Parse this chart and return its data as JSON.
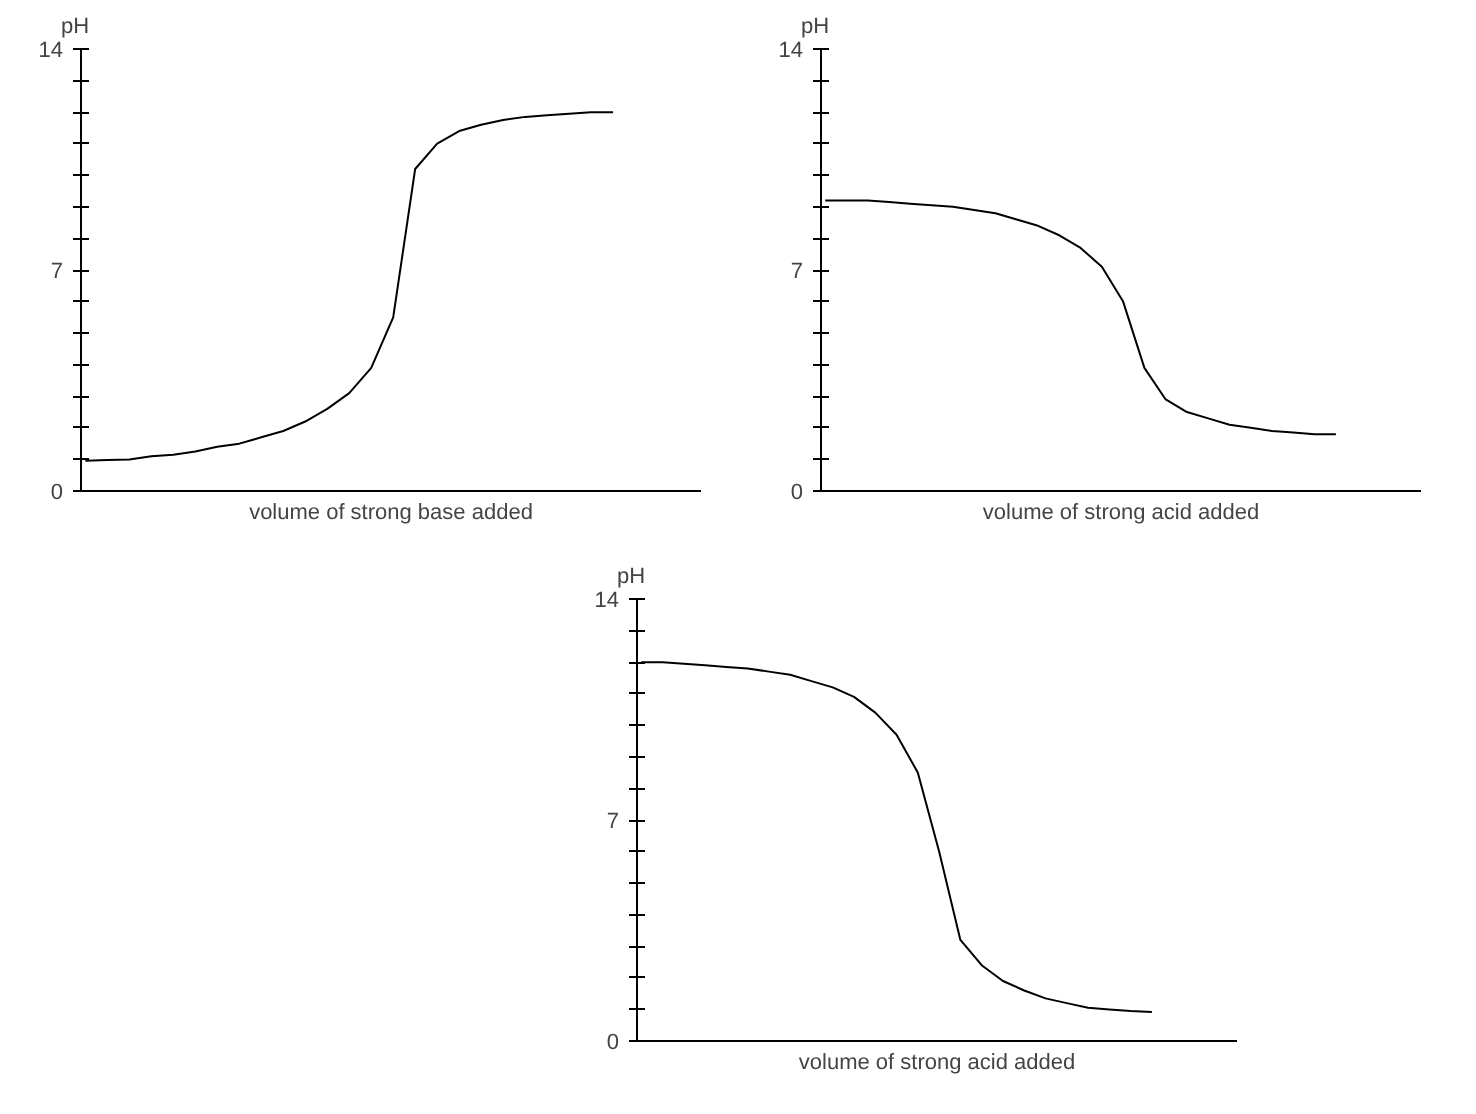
{
  "chart_data": [
    {
      "type": "line",
      "xlabel": "volume of strong base added",
      "ylabel": "pH",
      "tick_labels": "y",
      "color": "#000000",
      "ylim": [
        0,
        14
      ],
      "yticks": [
        0,
        {
          "value": 1,
          "label": null
        },
        {
          "value": 2,
          "label": null
        },
        {
          "value": 3,
          "label": null
        },
        {
          "value": 4,
          "label": null
        },
        {
          "value": 5,
          "label": null
        },
        {
          "value": 6,
          "label": null
        },
        7,
        {
          "value": 8,
          "label": null
        },
        {
          "value": 9,
          "label": null
        },
        {
          "value": 10,
          "label": null
        },
        {
          "value": 11,
          "label": null
        },
        {
          "value": 12,
          "label": null
        },
        {
          "value": 13,
          "label": null
        },
        14
      ],
      "categories": [
        null,
        null,
        null,
        null,
        null,
        null,
        null,
        null,
        null,
        null,
        null,
        null,
        null,
        null,
        null,
        null,
        null,
        null,
        null,
        null,
        null,
        null,
        null,
        null,
        null
      ],
      "values": [
        0.96,
        0.98,
        1.0,
        1.1,
        1.15,
        1.25,
        1.4,
        1.5,
        1.7,
        1.9,
        2.2,
        2.6,
        3.1,
        3.9,
        5.5,
        10.2,
        11.0,
        11.4,
        11.6,
        11.75,
        11.85,
        11.9,
        11.95,
        12.0,
        12.0
      ]
    },
    {
      "type": "line",
      "xlabel": "volume of strong acid added",
      "ylabel": "pH",
      "tick_labels": "y",
      "color": "#000000",
      "ylim": [
        0,
        14
      ],
      "yticks": [
        0,
        {
          "value": 1,
          "label": null
        },
        {
          "value": 2,
          "label": null
        },
        {
          "value": 3,
          "label": null
        },
        {
          "value": 4,
          "label": null
        },
        {
          "value": 5,
          "label": null
        },
        {
          "value": 6,
          "label": null
        },
        7,
        {
          "value": 8,
          "label": null
        },
        {
          "value": 9,
          "label": null
        },
        {
          "value": 10,
          "label": null
        },
        {
          "value": 11,
          "label": null
        },
        {
          "value": 12,
          "label": null
        },
        {
          "value": 13,
          "label": null
        },
        14
      ],
      "categories": [
        null,
        null,
        null,
        null,
        null,
        null,
        null,
        null,
        null,
        null,
        null,
        null,
        null,
        null,
        null,
        null,
        null,
        null,
        null,
        null,
        null,
        null,
        null,
        null,
        null
      ],
      "values": [
        9.2,
        9.2,
        9.2,
        9.15,
        9.1,
        9.05,
        9.0,
        8.9,
        8.8,
        8.6,
        8.4,
        8.1,
        7.7,
        7.1,
        6.0,
        3.9,
        2.9,
        2.5,
        2.3,
        2.1,
        2.0,
        1.9,
        1.85,
        1.8,
        1.8
      ]
    },
    {
      "type": "line",
      "xlabel": "volume of strong acid added",
      "ylabel": "pH",
      "tick_labels": "y",
      "color": "#000000",
      "ylim": [
        0,
        14
      ],
      "yticks": [
        0,
        {
          "value": 1,
          "label": null
        },
        {
          "value": 2,
          "label": null
        },
        {
          "value": 3,
          "label": null
        },
        {
          "value": 4,
          "label": null
        },
        {
          "value": 5,
          "label": null
        },
        {
          "value": 6,
          "label": null
        },
        7,
        {
          "value": 8,
          "label": null
        },
        {
          "value": 9,
          "label": null
        },
        {
          "value": 10,
          "label": null
        },
        {
          "value": 11,
          "label": null
        },
        {
          "value": 12,
          "label": null
        },
        {
          "value": 13,
          "label": null
        },
        14
      ],
      "categories": [
        null,
        null,
        null,
        null,
        null,
        null,
        null,
        null,
        null,
        null,
        null,
        null,
        null,
        null,
        null,
        null,
        null,
        null,
        null,
        null,
        null,
        null,
        null,
        null,
        null
      ],
      "values": [
        12.0,
        12.0,
        11.95,
        11.9,
        11.85,
        11.8,
        11.7,
        11.6,
        11.4,
        11.2,
        10.9,
        10.4,
        9.7,
        8.5,
        6.0,
        3.2,
        2.4,
        1.9,
        1.6,
        1.35,
        1.2,
        1.05,
        1.0,
        0.95,
        0.92
      ]
    }
  ]
}
